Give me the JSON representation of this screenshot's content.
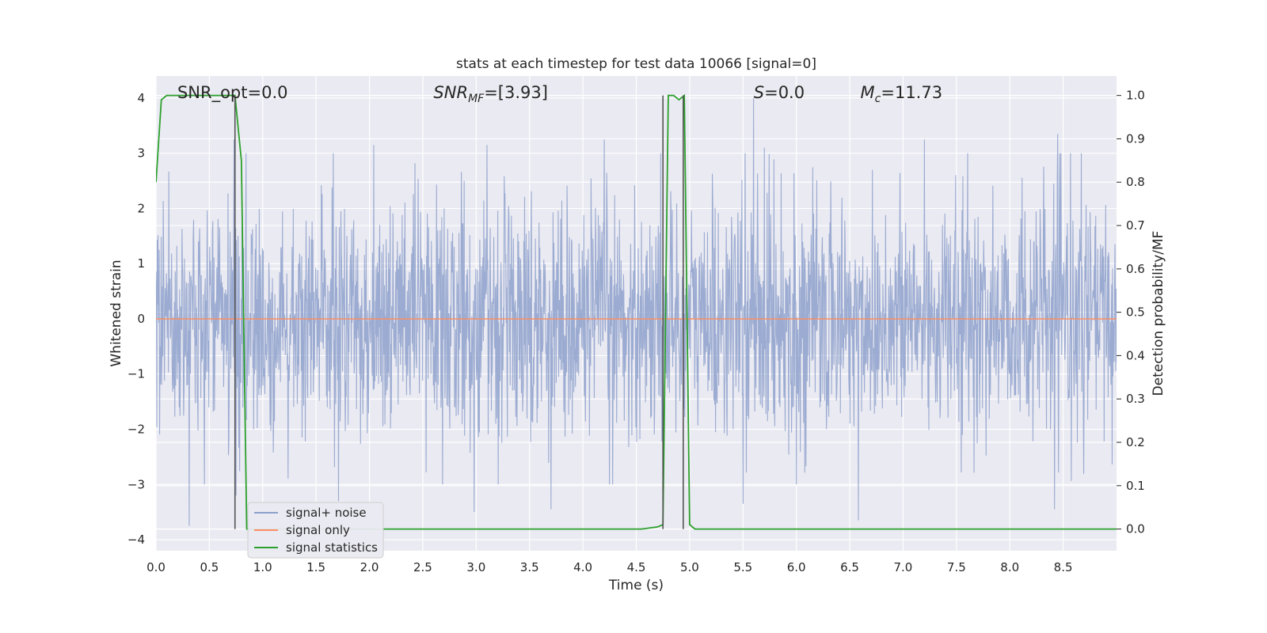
{
  "chart_data": {
    "type": "line",
    "title": "stats at each timestep for test data 10066 [signal=0]",
    "xlabel": "Time (s)",
    "ylabel_left": "Whitened strain",
    "ylabel_right": "Detection probability/MF",
    "xlim": [
      0.0,
      9.0
    ],
    "ylim_left": [
      -4.2,
      4.4
    ],
    "ylim_right": [
      -0.05,
      1.045
    ],
    "x_ticks": [
      "0.0",
      "0.5",
      "1.0",
      "1.5",
      "2.0",
      "2.5",
      "3.0",
      "3.5",
      "4.0",
      "4.5",
      "5.0",
      "5.5",
      "6.0",
      "6.5",
      "7.0",
      "7.5",
      "8.0",
      "8.5"
    ],
    "x_tick_values": [
      0.0,
      0.5,
      1.0,
      1.5,
      2.0,
      2.5,
      3.0,
      3.5,
      4.0,
      4.5,
      5.0,
      5.5,
      6.0,
      6.5,
      7.0,
      7.5,
      8.0,
      8.5
    ],
    "y_left_ticks": [
      "4",
      "3",
      "2",
      "1",
      "0",
      "−1",
      "−2",
      "−3",
      "−4"
    ],
    "y_left_tick_values": [
      4,
      3,
      2,
      1,
      0,
      -1,
      -2,
      -3,
      -4
    ],
    "y_right_ticks": [
      "1.0",
      "0.9",
      "0.8",
      "0.7",
      "0.6",
      "0.5",
      "0.4",
      "0.3",
      "0.2",
      "0.1",
      "0.0"
    ],
    "y_right_tick_values": [
      1.0,
      0.9,
      0.8,
      0.7,
      0.6,
      0.5,
      0.4,
      0.3,
      0.2,
      0.1,
      0.0
    ],
    "grid": true,
    "legend_position": "lower-left",
    "annotations": [
      {
        "id": "snr-opt",
        "text": "SNR_opt=0.0",
        "x": 0.2,
        "y": 4.1
      },
      {
        "id": "snr-mf",
        "text": "SNR",
        "sub": "MF",
        "tail": "=[3.93]",
        "x": 2.6,
        "y": 4.1
      },
      {
        "id": "s",
        "text": "S",
        "tail": "=0.0",
        "x": 5.6,
        "y": 4.1
      },
      {
        "id": "mc",
        "text": "M",
        "sub": "c",
        "tail": "=11.73",
        "x": 6.6,
        "y": 4.1
      }
    ],
    "series": [
      {
        "name": "signal+ noise",
        "axis": "left",
        "color": "#8da0cb",
        "kind": "noise",
        "x_range": [
          0.0,
          9.0
        ],
        "std": 1.05,
        "spikes": [
          {
            "x": 0.31,
            "y": 3.45
          },
          {
            "x": 0.31,
            "y": -3.75
          },
          {
            "x": 0.73,
            "y": 3.25
          },
          {
            "x": 0.75,
            "y": -3.2
          },
          {
            "x": 1.71,
            "y": -3.3
          },
          {
            "x": 2.04,
            "y": 3.15
          },
          {
            "x": 2.98,
            "y": -3.5
          },
          {
            "x": 3.1,
            "y": 3.15
          },
          {
            "x": 3.7,
            "y": -3.45
          },
          {
            "x": 4.2,
            "y": 3.25
          },
          {
            "x": 4.25,
            "y": -3.0
          },
          {
            "x": 5.52,
            "y": 3.0
          },
          {
            "x": 5.6,
            "y": 4.0
          },
          {
            "x": 5.5,
            "y": -3.35
          },
          {
            "x": 6.0,
            "y": -3.0
          },
          {
            "x": 6.58,
            "y": -3.65
          },
          {
            "x": 7.2,
            "y": 3.25
          },
          {
            "x": 8.45,
            "y": 3.35
          },
          {
            "x": 8.57,
            "y": 3.0
          },
          {
            "x": 8.42,
            "y": -3.45
          },
          {
            "x": 5.7,
            "y": 3.1
          }
        ]
      },
      {
        "name": "signal only",
        "axis": "left",
        "color": "#fc8d62",
        "x": [
          0.0,
          9.0
        ],
        "y": [
          0.0,
          0.0
        ]
      },
      {
        "name": "signal statistics",
        "axis": "right",
        "color": "#2ca02c",
        "x": [
          0.0,
          0.05,
          0.1,
          0.15,
          0.2,
          0.3,
          0.4,
          0.5,
          0.6,
          0.7,
          0.74,
          0.8,
          0.85,
          0.9,
          0.95,
          1.0,
          2.0,
          3.0,
          4.0,
          4.55,
          4.7,
          4.75,
          4.8,
          4.85,
          4.9,
          4.95,
          5.0,
          5.05,
          5.1,
          6.0,
          7.0,
          8.0,
          9.0
        ],
        "y": [
          0.8,
          0.99,
          1.0,
          1.0,
          1.0,
          1.0,
          1.0,
          1.0,
          1.0,
          1.0,
          1.0,
          0.85,
          0.0,
          0.0,
          0.0,
          0.0,
          0.0,
          0.0,
          0.0,
          0.0,
          0.005,
          0.01,
          1.0,
          1.0,
          0.99,
          1.0,
          0.01,
          0.0,
          0.0,
          0.0,
          0.0,
          0.0,
          0.0
        ]
      }
    ],
    "vertical_lines": [
      {
        "x": 0.74,
        "color": "#555555"
      },
      {
        "x": 4.75,
        "color": "#555555"
      },
      {
        "x": 4.94,
        "color": "#555555"
      }
    ]
  }
}
